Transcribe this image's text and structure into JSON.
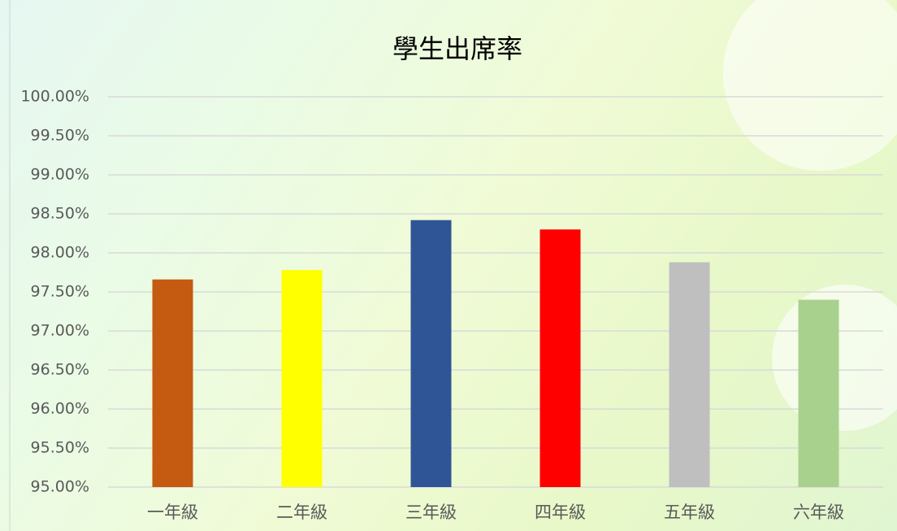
{
  "chart_data": {
    "type": "bar",
    "title": "學生出席率",
    "categories": [
      "一年級",
      "二年級",
      "三年級",
      "四年級",
      "五年級",
      "六年級"
    ],
    "values": [
      97.66,
      97.78,
      98.42,
      98.3,
      97.88,
      97.4
    ],
    "colors": [
      "#c55a11",
      "#ffff00",
      "#2f5597",
      "#ff0000",
      "#bfbfbf",
      "#a9d18e"
    ],
    "ylim": [
      95,
      100
    ],
    "yticks": [
      {
        "value": 95,
        "label": "95.00%"
      },
      {
        "value": 95.5,
        "label": "95.50%"
      },
      {
        "value": 96,
        "label": "96.00%"
      },
      {
        "value": 96.5,
        "label": "96.50%"
      },
      {
        "value": 97,
        "label": "97.00%"
      },
      {
        "value": 97.5,
        "label": "97.50%"
      },
      {
        "value": 98,
        "label": "98.00%"
      },
      {
        "value": 98.5,
        "label": "98.50%"
      },
      {
        "value": 99,
        "label": "99.00%"
      },
      {
        "value": 99.5,
        "label": "99.50%"
      },
      {
        "value": 100,
        "label": "100.00%"
      }
    ],
    "grid": true
  }
}
